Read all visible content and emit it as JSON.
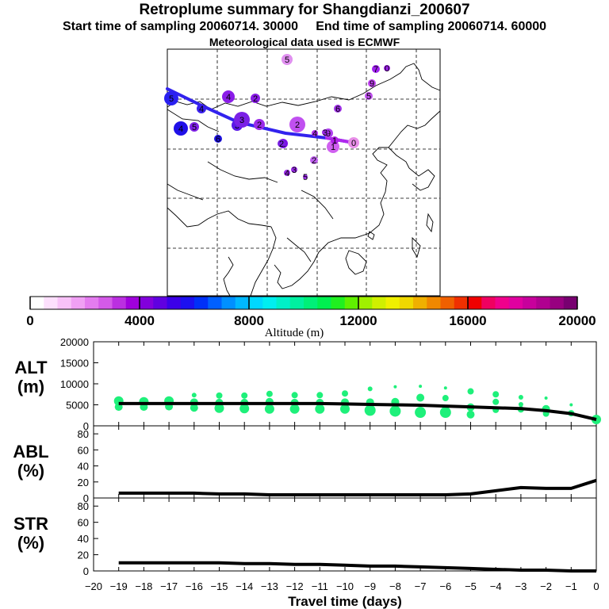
{
  "header": {
    "title": "Retroplume summary for Shangdianzi_200607",
    "start_label": "Start time of sampling 20060714. 30000",
    "end_label": "End time of sampling 20060714. 60000",
    "met_label": "Meteorological data used is ECMWF"
  },
  "colorbar": {
    "xlabel": "Altitude (m)",
    "ticks": [
      "0",
      "4000",
      "8000",
      "12000",
      "16000",
      "20000"
    ],
    "range": [
      0,
      20000
    ],
    "colors": [
      "#ffffff",
      "#fde0fd",
      "#f8c2f8",
      "#f0a0f4",
      "#e47cef",
      "#d45ae8",
      "#bb2fe0",
      "#a000dc",
      "#8200dc",
      "#6000e0",
      "#3c00e8",
      "#1c10f0",
      "#0030f8",
      "#0060ff",
      "#0090ff",
      "#00b8ff",
      "#00d8ff",
      "#00eef0",
      "#00f0c8",
      "#00f0a0",
      "#00f078",
      "#00f050",
      "#20f020",
      "#60f000",
      "#a0f000",
      "#d0f000",
      "#f0f000",
      "#f0d800",
      "#f0b000",
      "#f08800",
      "#f06000",
      "#f03000",
      "#f00000",
      "#f00060",
      "#f0008c",
      "#e000a0",
      "#c8009c",
      "#b00090",
      "#980080",
      "#780070"
    ]
  },
  "map": {
    "trajectory": [
      {
        "num": "0",
        "color": "#e88ee8"
      },
      {
        "num": "1",
        "color": "#d060f0"
      },
      {
        "num": "2",
        "color": "#7a10e6"
      },
      {
        "num": "3",
        "color": "#5a18e8"
      },
      {
        "num": "4",
        "color": "#3a20ee"
      },
      {
        "num": "5",
        "color": "#2a20f0"
      }
    ],
    "clusters": [
      {
        "num": "5",
        "color": "#e090f0"
      },
      {
        "num": "7",
        "color": "#a020f0"
      },
      {
        "num": "0",
        "color": "#a020f0"
      },
      {
        "num": "9",
        "color": "#c040f0"
      },
      {
        "num": "6",
        "color": "#a030e8"
      },
      {
        "num": "5",
        "color": "#c050ef"
      },
      {
        "num": "4",
        "color": "#8a1ce8"
      },
      {
        "num": "2",
        "color": "#8a1ce8"
      },
      {
        "num": "2",
        "color": "#c050f0"
      },
      {
        "num": "2",
        "color": "#9a2ae8"
      },
      {
        "num": "3",
        "color": "#7a20e6"
      },
      {
        "num": "2",
        "color": "#7a20e6"
      },
      {
        "num": "4",
        "color": "#2010e8"
      },
      {
        "num": "5",
        "color": "#8020e8"
      },
      {
        "num": "6",
        "color": "#1c10e0"
      },
      {
        "num": "9",
        "color": "#b040ef"
      },
      {
        "num": "4",
        "color": "#b030f0"
      },
      {
        "num": "1",
        "color": "#b020e8"
      },
      {
        "num": "3",
        "color": "#9a2ae8"
      },
      {
        "num": "2",
        "color": "#c060f0"
      },
      {
        "num": "4",
        "color": "#9a2ae8"
      },
      {
        "num": "3",
        "color": "#9a2ae8"
      },
      {
        "num": "5",
        "color": "#9a2ae8"
      }
    ]
  },
  "chart_data": [
    {
      "type": "scatter",
      "name": "ALT",
      "ylabel": "ALT\n(m)",
      "xlabel": "Travel time (days)",
      "xlim": [
        -20,
        0
      ],
      "ylim": [
        0,
        20000
      ],
      "yticks": [
        "0",
        "5000",
        "10000",
        "15000",
        "20000"
      ],
      "median_line": {
        "x": [
          -19,
          -18,
          -17,
          -16,
          -15,
          -14,
          -13,
          -12,
          -11,
          -10,
          -9,
          -8,
          -7,
          -6,
          -5,
          -4,
          -3,
          -2,
          -1,
          0
        ],
        "y": [
          5300,
          5300,
          5300,
          5300,
          5300,
          5300,
          5300,
          5300,
          5300,
          5200,
          5100,
          5000,
          4900,
          4700,
          4500,
          4300,
          4100,
          3600,
          2900,
          1500
        ]
      },
      "points": [
        [
          -19,
          5900,
          6
        ],
        [
          -19,
          4500,
          5
        ],
        [
          -18,
          5700,
          6
        ],
        [
          -18,
          4500,
          5
        ],
        [
          -17,
          5900,
          6
        ],
        [
          -17,
          4600,
          5
        ],
        [
          -16,
          7300,
          3
        ],
        [
          -16,
          5600,
          5
        ],
        [
          -16,
          4300,
          5
        ],
        [
          -15,
          7200,
          4
        ],
        [
          -15,
          5500,
          5
        ],
        [
          -15,
          4200,
          6
        ],
        [
          -14,
          7200,
          4
        ],
        [
          -14,
          5500,
          5
        ],
        [
          -14,
          4100,
          6
        ],
        [
          -13,
          7600,
          4
        ],
        [
          -13,
          5700,
          5
        ],
        [
          -13,
          4000,
          6
        ],
        [
          -12,
          7300,
          4
        ],
        [
          -12,
          5500,
          5
        ],
        [
          -12,
          4000,
          6
        ],
        [
          -11,
          7300,
          4
        ],
        [
          -11,
          5500,
          5
        ],
        [
          -11,
          4000,
          6
        ],
        [
          -10,
          7700,
          4
        ],
        [
          -10,
          5600,
          5
        ],
        [
          -10,
          4000,
          6
        ],
        [
          -9,
          8800,
          3
        ],
        [
          -9,
          5600,
          5
        ],
        [
          -9,
          3700,
          7
        ],
        [
          -8,
          9300,
          2
        ],
        [
          -8,
          5700,
          5
        ],
        [
          -8,
          3500,
          7
        ],
        [
          -7,
          9400,
          2
        ],
        [
          -7,
          6700,
          5
        ],
        [
          -7,
          3200,
          7
        ],
        [
          -6,
          9000,
          2
        ],
        [
          -6,
          6600,
          4
        ],
        [
          -6,
          3200,
          7
        ],
        [
          -5,
          8200,
          4
        ],
        [
          -5,
          4400,
          5
        ],
        [
          -5,
          2700,
          5
        ],
        [
          -4,
          7500,
          4
        ],
        [
          -4,
          5700,
          4
        ],
        [
          -4,
          3800,
          4
        ],
        [
          -3,
          6800,
          3
        ],
        [
          -3,
          5100,
          3
        ],
        [
          -3,
          3900,
          4
        ],
        [
          -2,
          6600,
          2
        ],
        [
          -2,
          4000,
          5
        ],
        [
          -2,
          2900,
          4
        ],
        [
          -1,
          5000,
          2
        ],
        [
          -1,
          3000,
          4
        ],
        [
          0,
          1500,
          6
        ]
      ]
    },
    {
      "type": "line",
      "name": "ABL",
      "ylabel": "ABL\n(%)",
      "xlim": [
        -20,
        0
      ],
      "ylim": [
        0,
        90
      ],
      "yticks": [
        "0",
        "20",
        "40",
        "60",
        "80"
      ],
      "x": [
        -19,
        -18,
        -17,
        -16,
        -15,
        -14,
        -13,
        -12,
        -11,
        -10,
        -9,
        -8,
        -7,
        -6,
        -5,
        -4,
        -3,
        -2,
        -1,
        0
      ],
      "y": [
        6,
        6,
        6,
        6,
        5,
        5,
        4,
        4,
        4,
        4,
        4,
        4,
        4,
        4,
        5,
        9,
        13,
        12,
        12,
        22
      ]
    },
    {
      "type": "line",
      "name": "STR",
      "ylabel": "STR\n(%)",
      "xlabel": "Travel time (days)",
      "xlim": [
        -20,
        0
      ],
      "ylim": [
        0,
        90
      ],
      "yticks": [
        "0",
        "20",
        "40",
        "60",
        "80"
      ],
      "xticks": [
        "−20",
        "−19",
        "−18",
        "−17",
        "−16",
        "−15",
        "−14",
        "−13",
        "−12",
        "−11",
        "−10",
        "−9",
        "−8",
        "−7",
        "−6",
        "−5",
        "−4",
        "−3",
        "−2",
        "−1",
        "0"
      ],
      "x": [
        -19,
        -18,
        -17,
        -16,
        -15,
        -14,
        -13,
        -12,
        -11,
        -10,
        -9,
        -8,
        -7,
        -6,
        -5,
        -4,
        -3,
        -2,
        -1,
        0
      ],
      "y": [
        10,
        10,
        10,
        10,
        10,
        9,
        9,
        8,
        8,
        7,
        6,
        6,
        5,
        4,
        3,
        2,
        1,
        1,
        0,
        0
      ]
    }
  ]
}
